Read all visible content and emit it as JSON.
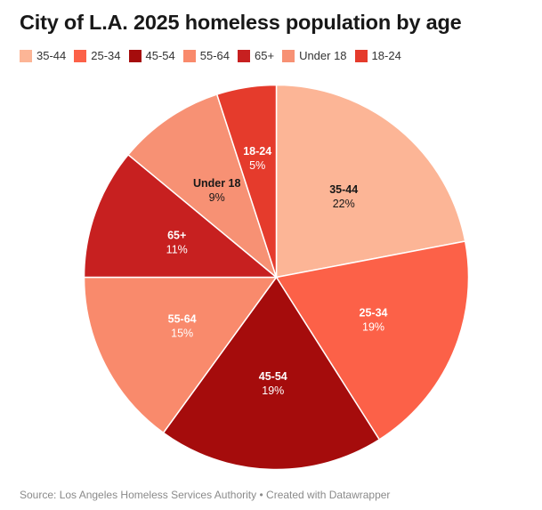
{
  "title": "City of L.A. 2025 homeless population by age",
  "footer": {
    "source": "Source: Los Angeles Homeless Services Authority",
    "separator": "•",
    "credit": "Created with Datawrapper"
  },
  "chart_data": {
    "type": "pie",
    "title": "City of L.A. 2025 homeless population by age",
    "legend_position": "top",
    "start_angle_deg": 0,
    "direction": "clockwise",
    "slices": [
      {
        "label": "35-44",
        "value": 22,
        "display": "22%",
        "color": "#fcb596",
        "text_color": "#181818"
      },
      {
        "label": "25-34",
        "value": 19,
        "display": "19%",
        "color": "#fc6148",
        "text_color": "#ffffff"
      },
      {
        "label": "45-54",
        "value": 19,
        "display": "19%",
        "color": "#a50c0c",
        "text_color": "#ffffff"
      },
      {
        "label": "55-64",
        "value": 15,
        "display": "15%",
        "color": "#f98a6c",
        "text_color": "#ffffff"
      },
      {
        "label": "65+",
        "value": 11,
        "display": "11%",
        "color": "#c72020",
        "text_color": "#ffffff"
      },
      {
        "label": "Under 18",
        "value": 9,
        "display": "9%",
        "color": "#f79174",
        "text_color": "#181818"
      },
      {
        "label": "18-24",
        "value": 5,
        "display": "5%",
        "color": "#e53b2c",
        "text_color": "#ffffff"
      }
    ]
  }
}
